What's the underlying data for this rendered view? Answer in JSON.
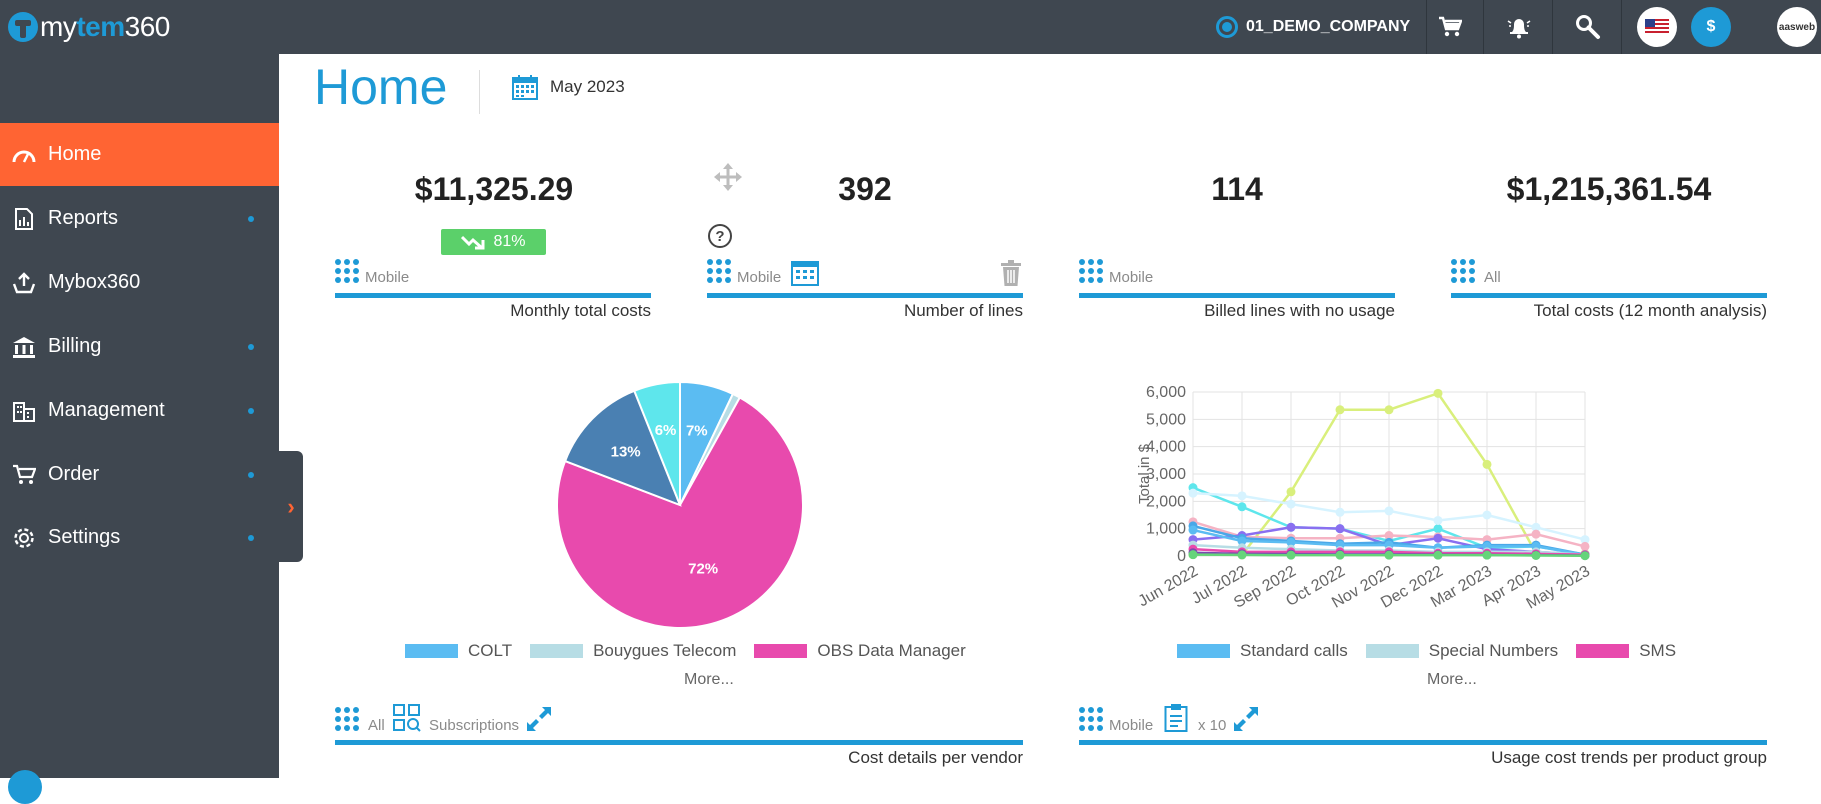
{
  "header": {
    "logo_prefix": "my",
    "logo_bold": "tem",
    "logo_suffix": "360",
    "company": "01_DEMO_COMPANY",
    "currency_symbol": "$",
    "account_badge": "aasweb"
  },
  "sidebar": {
    "items": [
      {
        "label": "Home",
        "icon": "gauge-icon",
        "active": true,
        "has_submenu": false
      },
      {
        "label": "Reports",
        "icon": "report-icon",
        "active": false,
        "has_submenu": true
      },
      {
        "label": "Mybox360",
        "icon": "upload-tray-icon",
        "active": false,
        "has_submenu": false
      },
      {
        "label": "Billing",
        "icon": "bank-icon",
        "active": false,
        "has_submenu": true
      },
      {
        "label": "Management",
        "icon": "building-icon",
        "active": false,
        "has_submenu": true
      },
      {
        "label": "Order",
        "icon": "cart-icon",
        "active": false,
        "has_submenu": true
      },
      {
        "label": "Settings",
        "icon": "gear-icon",
        "active": false,
        "has_submenu": true
      }
    ],
    "toggle_glyph": "›"
  },
  "page": {
    "title": "Home",
    "period": "May 2023"
  },
  "kpis": [
    {
      "value": "$11,325.29",
      "scope": "Mobile",
      "title": "Monthly total costs",
      "trend": "81%"
    },
    {
      "value": "392",
      "scope": "Mobile",
      "title": "Number of lines"
    },
    {
      "value": "114",
      "scope": "Mobile",
      "title": "Billed lines with no usage"
    },
    {
      "value": "$1,215,361.54",
      "scope": "All",
      "title": "Total costs (12 month analysis)"
    }
  ],
  "vendor_widget": {
    "scope": "All",
    "subtype": "Subscriptions",
    "title": "Cost details per vendor",
    "more": "More...",
    "legend": [
      "COLT",
      "Bouygues Telecom",
      "OBS Data Manager"
    ]
  },
  "usage_widget": {
    "scope": "Mobile",
    "multiplier": "x 10",
    "title": "Usage cost trends per product group",
    "more": "More...",
    "legend": [
      "Standard calls",
      "Special Numbers",
      "SMS"
    ]
  },
  "colors": {
    "accent": "#1e9ad6",
    "active_nav": "#ff6433",
    "sidebar": "#3f4750",
    "badge_green": "#5bd06a"
  },
  "chart_data": [
    {
      "type": "pie",
      "title": "",
      "slices": [
        {
          "label": "COLT",
          "value": 7,
          "color": "#5bbcf2"
        },
        {
          "label": "Bouygues Telecom",
          "value": 1,
          "color": "#b7dde5"
        },
        {
          "label": "OBS Data Manager",
          "value": 72,
          "color": "#e84aad"
        },
        {
          "label": "",
          "value": 13,
          "color": "#4a80b2"
        },
        {
          "label": "",
          "value": 6,
          "color": "#5ee6ec"
        }
      ],
      "slice_labels": [
        "7%",
        "",
        "72%",
        "13%",
        "6%"
      ]
    },
    {
      "type": "line",
      "title": "",
      "xlabel": "",
      "ylabel": "Total in $",
      "categories": [
        "Jun 2022",
        "Jul 2022",
        "Sep 2022",
        "Oct 2022",
        "Nov 2022",
        "Dec 2022",
        "Mar 2023",
        "Apr 2023",
        "May 2023"
      ],
      "y_ticks": [
        "0",
        "1,000",
        "2,000",
        "3,000",
        "4,000",
        "5,000",
        "6,000"
      ],
      "ylim": [
        0,
        6000
      ],
      "grid": true,
      "series": [
        {
          "name": "",
          "color": "#d9ef7c",
          "values": [
            50,
            40,
            2350,
            5350,
            5350,
            5950,
            3350,
            100,
            80
          ]
        },
        {
          "name": "",
          "color": "#5ee6ec",
          "values": [
            2500,
            1800,
            1050,
            1000,
            550,
            1000,
            300,
            350,
            50
          ]
        },
        {
          "name": "",
          "color": "#d6f3ff",
          "values": [
            2300,
            2200,
            1900,
            1600,
            1650,
            1300,
            1500,
            1050,
            600
          ]
        },
        {
          "name": "",
          "color": "#f5b3c4",
          "values": [
            1250,
            700,
            650,
            650,
            750,
            700,
            600,
            800,
            350
          ]
        },
        {
          "name": "",
          "color": "#8a6ff0",
          "values": [
            600,
            750,
            1050,
            1000,
            400,
            650,
            250,
            150,
            50
          ]
        },
        {
          "name": "",
          "color": "#4aa8e8",
          "values": [
            1100,
            650,
            550,
            450,
            500,
            300,
            400,
            400,
            50
          ]
        },
        {
          "name": "Standard calls",
          "color": "#5bbcf2",
          "values": [
            950,
            550,
            500,
            400,
            400,
            300,
            350,
            350,
            50
          ]
        },
        {
          "name": "Special Numbers",
          "color": "#b7dde5",
          "values": [
            400,
            300,
            250,
            200,
            200,
            150,
            150,
            150,
            50
          ]
        },
        {
          "name": "SMS",
          "color": "#e84aad",
          "values": [
            250,
            150,
            150,
            150,
            150,
            100,
            100,
            80,
            50
          ]
        },
        {
          "name": "",
          "color": "#7a4ab0",
          "values": [
            120,
            80,
            70,
            60,
            60,
            50,
            40,
            30,
            20
          ]
        },
        {
          "name": "",
          "color": "#66d47a",
          "values": [
            50,
            40,
            30,
            30,
            30,
            30,
            30,
            20,
            10
          ]
        }
      ]
    }
  ]
}
